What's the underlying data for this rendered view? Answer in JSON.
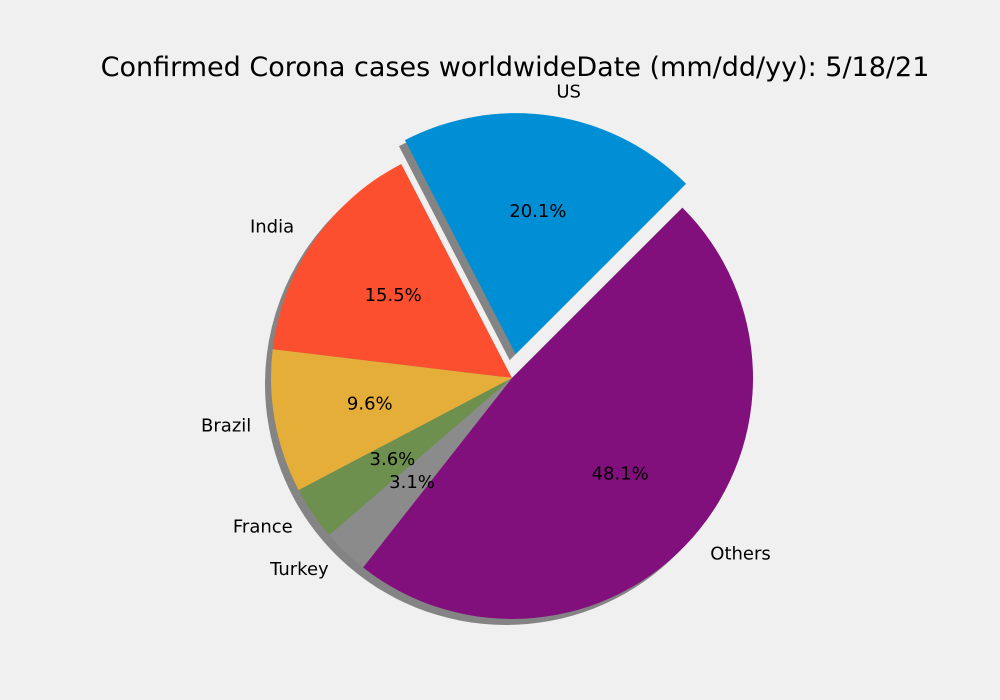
{
  "chart_data": {
    "type": "pie",
    "title": "Confirmed Corona cases worldwideDate (mm/dd/yy): 5/18/21",
    "slices": [
      {
        "label": "US",
        "pct": 20.1,
        "pct_label": "20.1%",
        "color": "#008fd5",
        "exploded": true
      },
      {
        "label": "India",
        "pct": 15.5,
        "pct_label": "15.5%",
        "color": "#fc4f30",
        "exploded": false
      },
      {
        "label": "Brazil",
        "pct": 9.6,
        "pct_label": "9.6%",
        "color": "#e5ae38",
        "exploded": false
      },
      {
        "label": "France",
        "pct": 3.6,
        "pct_label": "3.6%",
        "color": "#6d904f",
        "exploded": false
      },
      {
        "label": "Turkey",
        "pct": 3.1,
        "pct_label": "3.1%",
        "color": "#8b8b8b",
        "exploded": false
      },
      {
        "label": "Others",
        "pct": 48.1,
        "pct_label": "48.1%",
        "color": "#810f7c",
        "exploded": false
      }
    ],
    "shadow": true
  }
}
